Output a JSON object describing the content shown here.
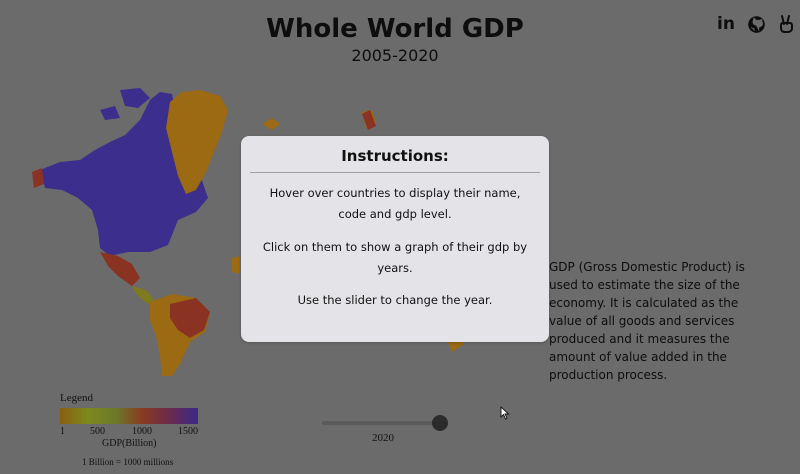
{
  "header": {
    "title": "Whole World GDP",
    "subtitle": "2005-2020"
  },
  "social": [
    {
      "icon": "linkedin-icon",
      "glyph": "in"
    },
    {
      "icon": "github-icon"
    },
    {
      "icon": "peace-hand-icon"
    }
  ],
  "description": "GDP (Gross Domestic Product) is used to estimate the size of the economy. It is calculated as the value of all goods and services produced and it measures the amount of value added in the production process.",
  "legend": {
    "title": "Legend",
    "ticks": [
      "1",
      "500",
      "1000",
      "1500"
    ],
    "unit": "GDP(Billion)",
    "note": "1 Billion = 1000 millions",
    "colors": [
      "#8a5e10",
      "#7d8a1e",
      "#6c7a2a",
      "#8a3a20",
      "#6a2a50",
      "#3a2a8a"
    ]
  },
  "slider": {
    "value_fraction": 0.92,
    "year": "2020"
  },
  "modal": {
    "title": "Instructions:",
    "p1": "Hover over countries to display their name, code and gdp level.",
    "p2": "Click on them to show a graph of their gdp by years.",
    "p3": "Use the slider to change the year."
  },
  "map_colors": {
    "north_america": "#3b2e8c",
    "greenland": "#9b6a12",
    "mexico": "#8a3323",
    "south_america": "#9b6a12",
    "brazil": "#8a3323",
    "central_america": "#7f7a1e"
  }
}
